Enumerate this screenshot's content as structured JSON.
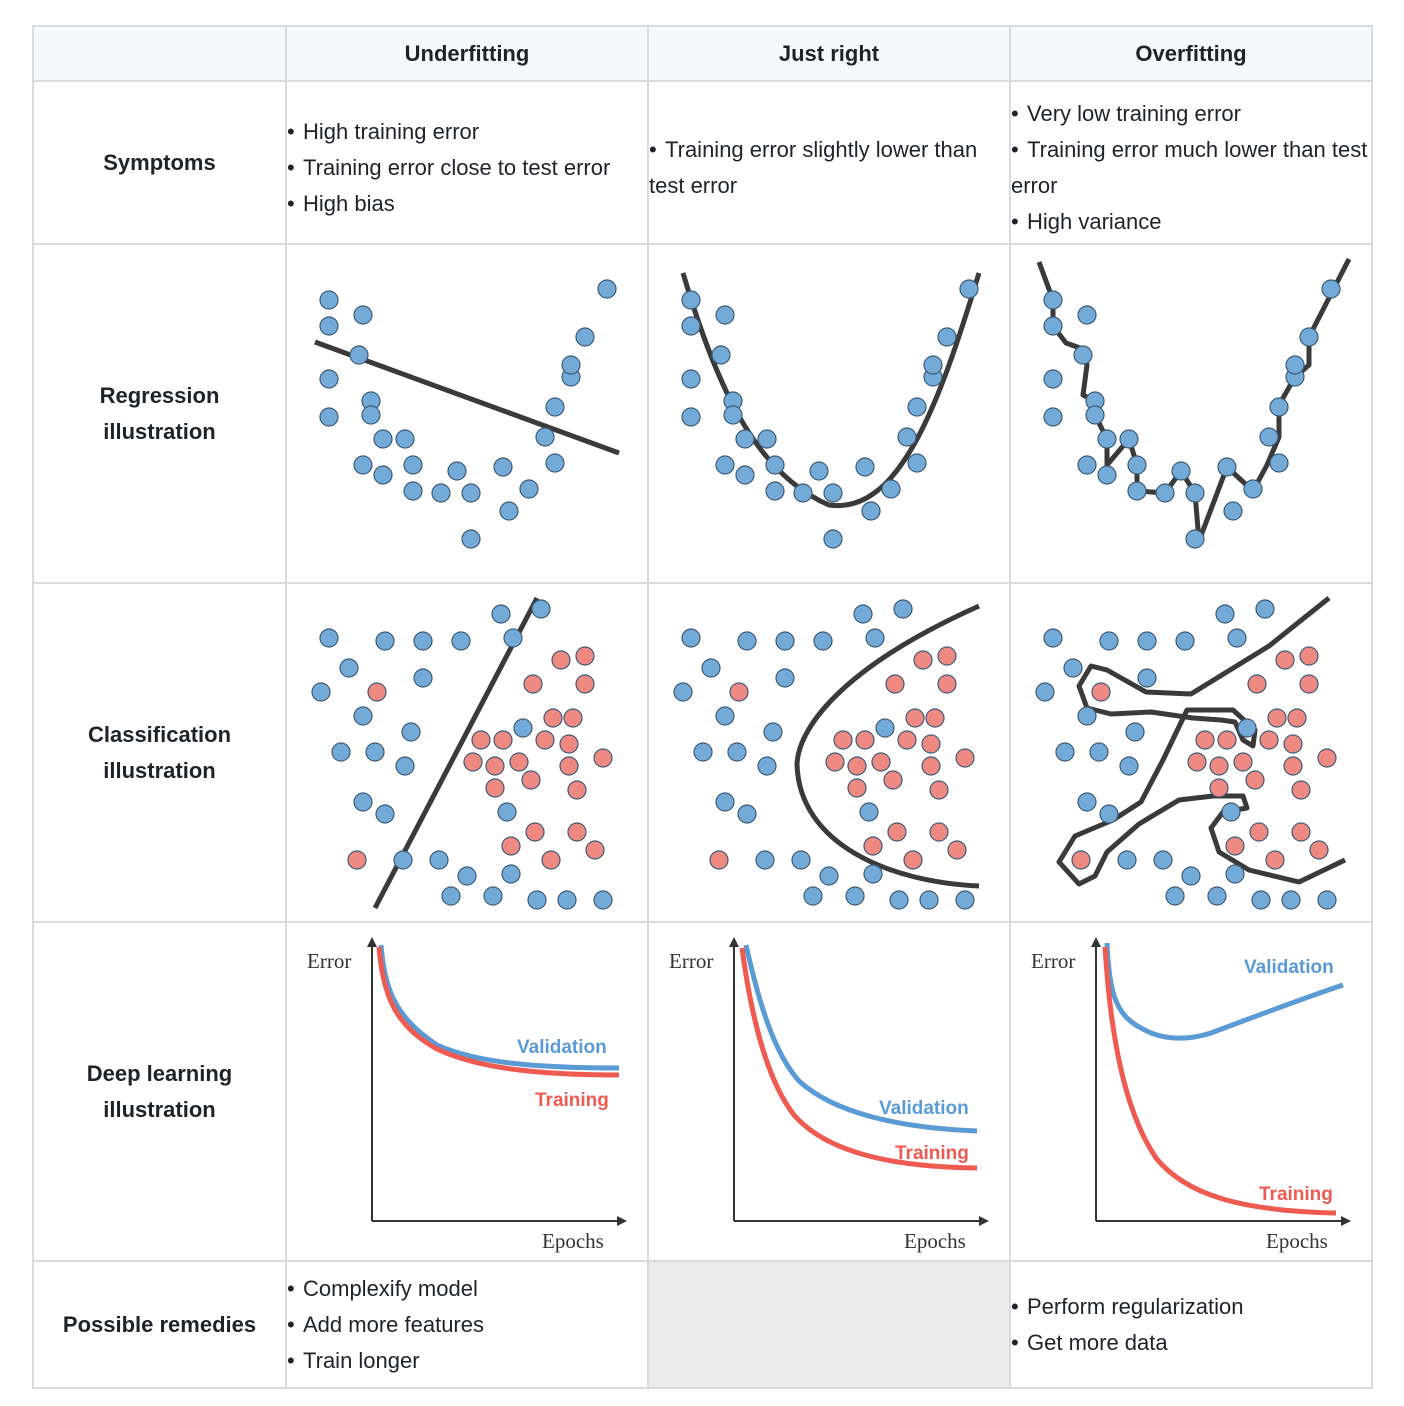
{
  "header": {
    "corner": "",
    "col_underfitting": "Underfitting",
    "col_justright": "Just right",
    "col_overfitting": "Overfitting"
  },
  "rows": {
    "symptoms": "Symptoms",
    "regression": [
      "Regression",
      "illustration"
    ],
    "classification": [
      "Classification",
      "illustration"
    ],
    "deep_learning": [
      "Deep learning",
      "illustration"
    ],
    "remedies": "Possible remedies"
  },
  "symptoms": {
    "underfitting": [
      "High training error",
      "Training error close to test error",
      "High bias"
    ],
    "justright": [
      "Training error slightly lower than test error"
    ],
    "overfitting": [
      "Very low training error",
      "Training error much lower than test error",
      "High variance"
    ]
  },
  "remedies": {
    "underfitting": [
      "Complexify model",
      "Add more features",
      "Train longer"
    ],
    "justright": [],
    "overfitting": [
      "Perform regularization",
      "Get more data"
    ]
  },
  "dl_labels": {
    "y_axis": "Error",
    "x_axis": "Epochs",
    "validation": "Validation",
    "training": "Training"
  },
  "colors": {
    "blue_point": "#74aad8",
    "red_point": "#ef8a83",
    "validation": "#5b9bd5",
    "training": "#ef5b50",
    "model_line": "#3a3a3a",
    "border": "#d9dcdf",
    "header_bg": "#f6f8fa",
    "empty_cell": "#ebebeb"
  }
}
